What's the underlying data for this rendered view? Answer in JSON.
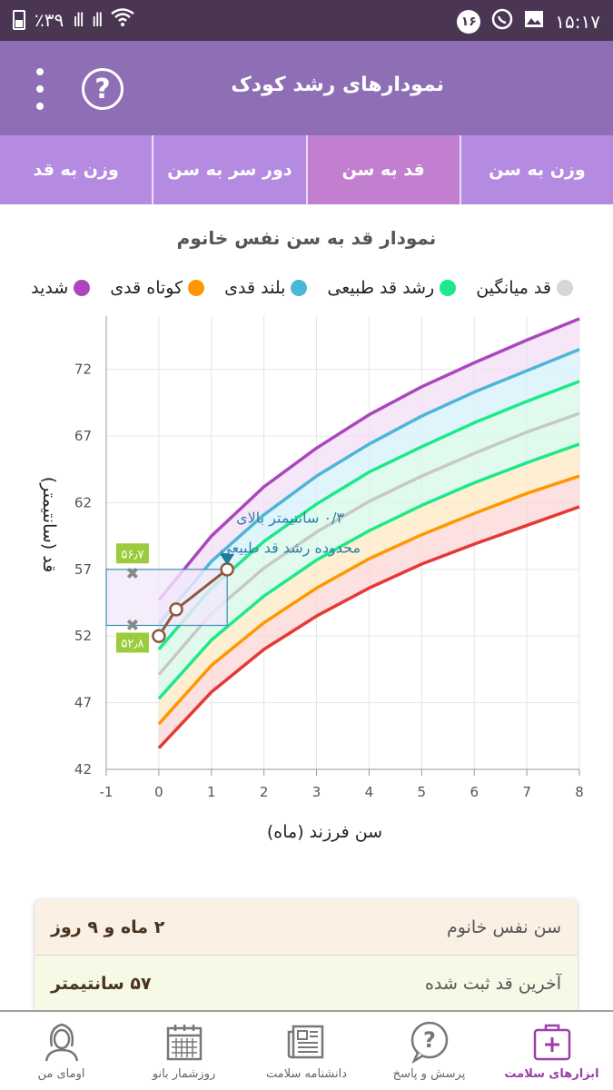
{
  "status_bar": {
    "time": "۱۵:۱۷",
    "battery_percent": "٪۳۹",
    "notification_count": "۱۶"
  },
  "app_bar": {
    "title": "نمودارهای رشد کودک",
    "help_symbol": "?"
  },
  "tabs": [
    {
      "label": "وزن به سن",
      "active": false
    },
    {
      "label": "قد به سن",
      "active": true
    },
    {
      "label": "دور سر به سن",
      "active": false
    },
    {
      "label": "وزن به قد",
      "active": false
    }
  ],
  "chart_title": "نمودار قد به سن نفس خانوم",
  "legend": [
    {
      "label": "شدید",
      "color": "#ab47bc"
    },
    {
      "label": "کوتاه قدی",
      "color": "#ff9800"
    },
    {
      "label": "بلند قدی",
      "color": "#4cb6d6"
    },
    {
      "label": "رشد قد طبیعی",
      "color": "#1de98b"
    },
    {
      "label": "قد میانگین",
      "color": "#d6d6d6"
    }
  ],
  "chart_data": {
    "type": "line",
    "title": "نمودار قد به سن نفس خانوم",
    "xlabel": "سن فرزند (ماه)",
    "ylabel": "قد (سانتیمتر)",
    "xlim": [
      -1,
      8
    ],
    "ylim": [
      42,
      76
    ],
    "xticks": [
      "-1",
      "0",
      "1",
      "2",
      "3",
      "4",
      "5",
      "6",
      "7",
      "8"
    ],
    "yticks": [
      "42",
      "47",
      "52",
      "57",
      "62",
      "67",
      "72"
    ],
    "grid": true,
    "x": [
      0,
      1,
      2,
      3,
      4,
      5,
      6,
      7,
      8
    ],
    "series": [
      {
        "name": "",
        "color": "#e53935",
        "values": [
          43.6,
          47.8,
          51.0,
          53.5,
          55.6,
          57.4,
          58.9,
          60.3,
          61.7
        ]
      },
      {
        "name": "",
        "color": "#ff9800",
        "values": [
          45.4,
          49.8,
          53.0,
          55.6,
          57.8,
          59.6,
          61.2,
          62.7,
          64.0
        ]
      },
      {
        "name": "",
        "color": "#1de98b",
        "values": [
          47.3,
          51.7,
          55.0,
          57.7,
          59.9,
          61.8,
          63.5,
          65.0,
          66.4
        ]
      },
      {
        "name": "",
        "color": "#c8c8c8",
        "values": [
          49.1,
          53.7,
          57.1,
          59.8,
          62.1,
          64.0,
          65.7,
          67.3,
          68.7
        ]
      },
      {
        "name": "",
        "color": "#1de98b",
        "values": [
          51.0,
          55.6,
          59.1,
          61.9,
          64.3,
          66.2,
          68.0,
          69.6,
          71.1
        ]
      },
      {
        "name": "",
        "color": "#4cb6d6",
        "values": [
          52.9,
          57.6,
          61.1,
          64.0,
          66.4,
          68.5,
          70.3,
          71.9,
          73.5
        ]
      },
      {
        "name": "",
        "color": "#ab47bc",
        "values": [
          54.7,
          59.5,
          63.2,
          66.1,
          68.6,
          70.7,
          72.5,
          74.2,
          75.8
        ]
      }
    ],
    "child_measurements": {
      "color": "#8d5a3b",
      "points": [
        {
          "x": 0,
          "y": 52
        },
        {
          "x": 0.33,
          "y": 54
        },
        {
          "x": 1.3,
          "y": 57
        }
      ]
    },
    "reference_range": {
      "x": [
        -1,
        1.3
      ],
      "y": [
        52.8,
        56.7
      ],
      "labels": [
        "۵۶٫۷",
        "۵۲٫۸"
      ]
    },
    "annotation": [
      "۰/۳ سانتیمتر بالای",
      "محدوده رشد قد طبیعی"
    ]
  },
  "info": [
    {
      "label": "سن نفس خانوم",
      "value": "۲ ماه و ۹ روز"
    },
    {
      "label": "آخرین قد ثبت شده",
      "value": "۵۷ سانتیمتر"
    }
  ],
  "bottom_nav": [
    {
      "label": "ابزارهای سلامت",
      "icon": "medical-kit-icon",
      "active": true
    },
    {
      "label": "پرسش و پاسخ",
      "icon": "question-bubble-icon",
      "active": false
    },
    {
      "label": "دانشنامه سلامت",
      "icon": "newspaper-icon",
      "active": false
    },
    {
      "label": "روزشمار بانو",
      "icon": "calendar-icon",
      "active": false
    },
    {
      "label": "اومای من",
      "icon": "profile-woman-icon",
      "active": false
    }
  ]
}
